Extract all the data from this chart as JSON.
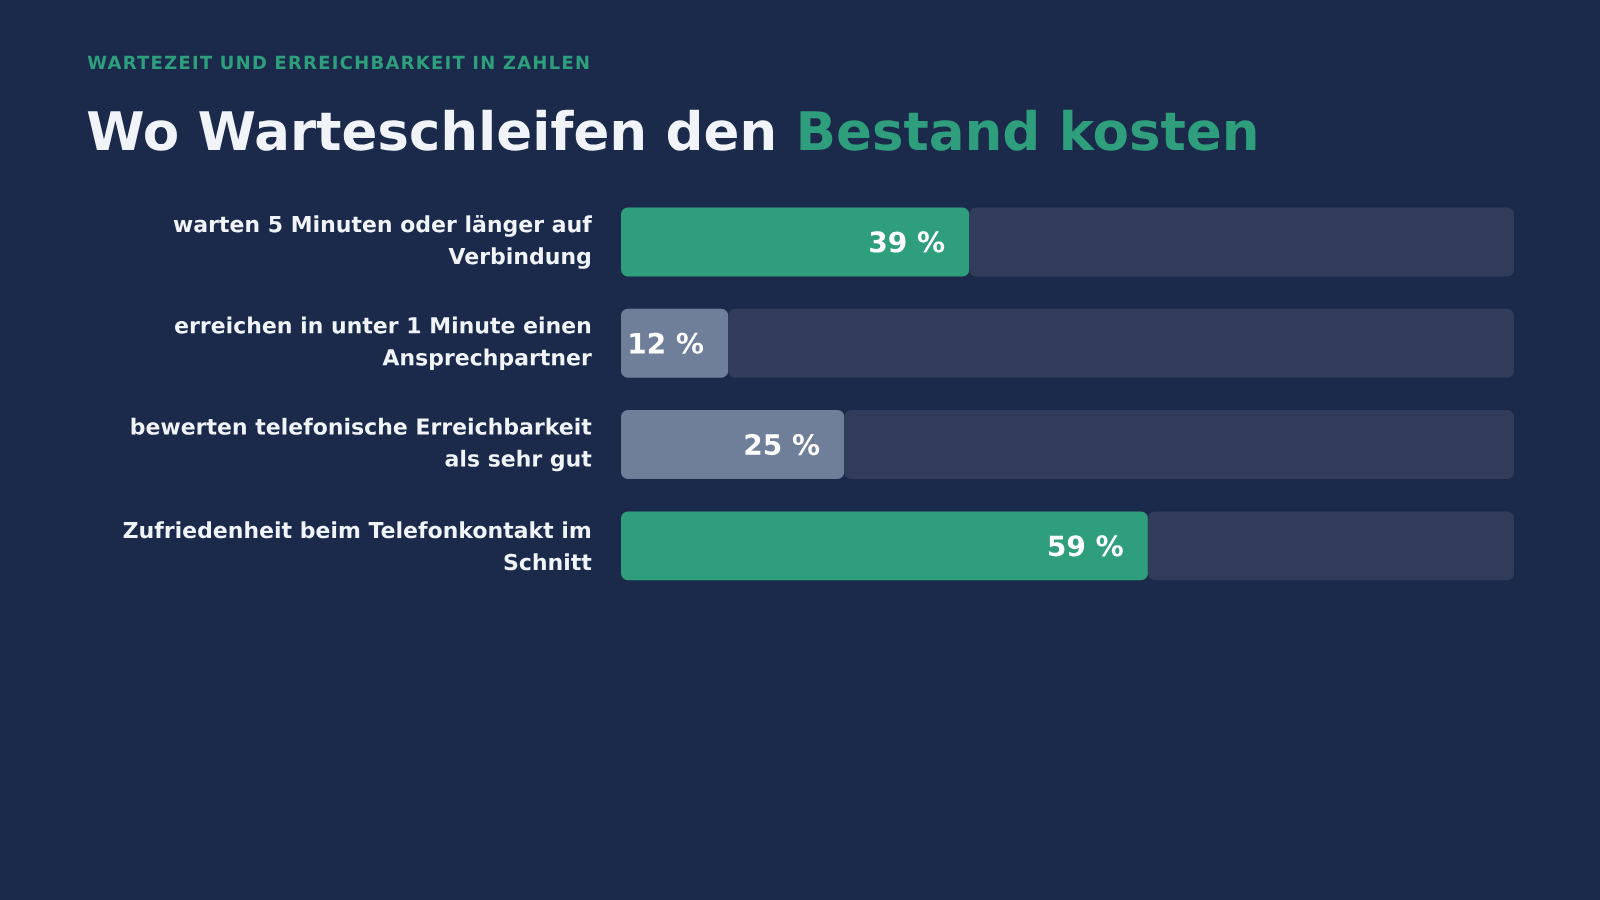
{
  "chart_data": {
    "type": "bar",
    "orientation": "horizontal",
    "stacked": true,
    "subtitle": "WARTEZEIT UND ERREICHBARKEIT IN ZAHLEN",
    "title": "Wo Warteschleifen den **Bestand kosten**",
    "categories": [
      "warten 5 Minuten oder länger auf Verbindung",
      "erreichen in unter 1 Minute einen Ansprechpartner",
      "bewerten telefonische Erreichbarkeit als sehr gut",
      "Zufriedenheit beim Telefonkontakt im Schnitt"
    ],
    "series": [
      {
        "values": [
          39,
          12,
          25,
          59
        ],
        "colors": [
          "#2e9e7c",
          "#6f7f9a",
          "#6f7f9a",
          "#2e9e7c"
        ],
        "value_labels": [
          "39 %",
          "12 %",
          "25 %",
          "59 %"
        ]
      },
      {
        "values": [
          61,
          88,
          75,
          41
        ],
        "color": "#303c5a"
      }
    ],
    "xlim": [
      0,
      100
    ],
    "tick_labels": "y"
  }
}
